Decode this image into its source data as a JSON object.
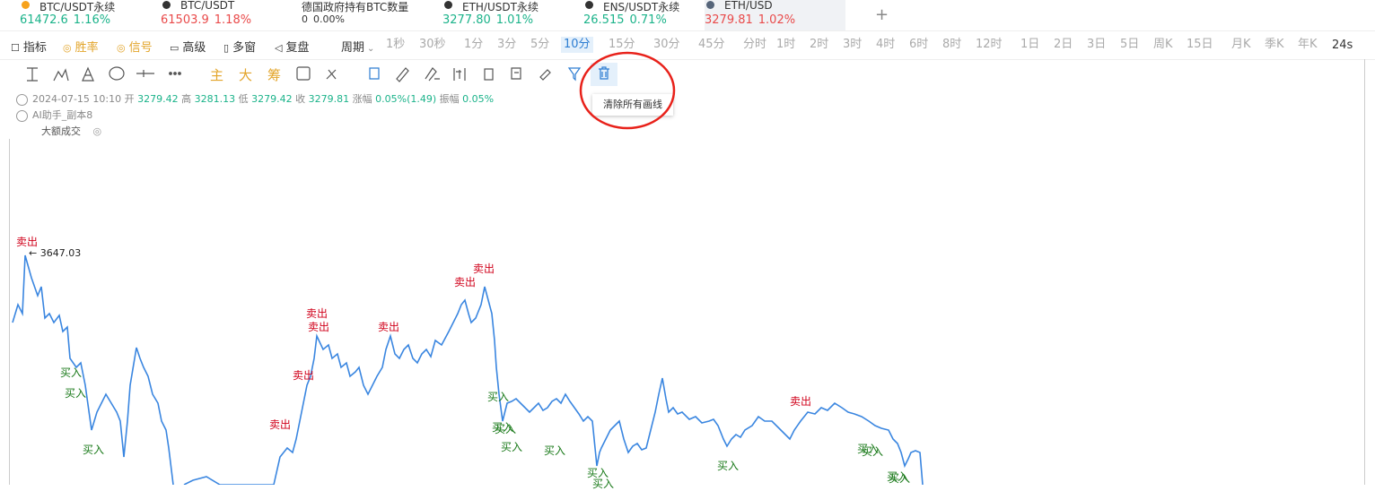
{
  "tabs": [
    {
      "symbol": "BTC/USDT永续",
      "price": "61472.6",
      "change": "1.16%",
      "trend": "up"
    },
    {
      "symbol": "BTC/USDT",
      "price": "61503.9",
      "change": "1.18%",
      "trend": "down"
    },
    {
      "symbol": "德国政府持有BTC数量",
      "price": "0",
      "change": "0.00%",
      "trend": "flat"
    },
    {
      "symbol": "ETH/USDT永续",
      "price": "3277.80",
      "change": "1.01%",
      "trend": "up"
    },
    {
      "symbol": "ENS/USDT永续",
      "price": "26.515",
      "change": "0.71%",
      "trend": "up"
    },
    {
      "symbol": "ETH/USD",
      "price": "3279.81",
      "change": "1.02%",
      "trend": "down"
    }
  ],
  "active_tab_index": 5,
  "toolbar": {
    "items": [
      "指标",
      "胜率",
      "信号",
      "高级",
      "多窗",
      "复盘",
      "周期"
    ],
    "intervals": [
      "1秒",
      "30秒",
      "1分",
      "3分",
      "5分",
      "10分",
      "15分",
      "30分",
      "45分",
      "分时",
      "1时",
      "2时",
      "3时",
      "4时",
      "6时",
      "8时",
      "12时",
      "1日",
      "2日",
      "3日",
      "5日",
      "周K",
      "15日",
      "月K",
      "季K",
      "年K"
    ],
    "active_interval_index": 5,
    "countdown": "24s"
  },
  "drawing_tools": {
    "labels": [
      "主",
      "大",
      "筹"
    ],
    "tooltip": "清除所有画线"
  },
  "ohlc": {
    "time": "2024-07-15 10:10",
    "open_label": "开",
    "open": "3279.42",
    "high_label": "高",
    "high": "3281.13",
    "low_label": "低",
    "low": "3279.42",
    "close_label": "收",
    "close": "3279.81",
    "change_label": "涨幅",
    "change": "0.05%(1.49)",
    "amplitude_label": "振幅",
    "amplitude": "0.05%"
  },
  "indicators": [
    "AI助手_副本8",
    "大额成交"
  ],
  "chart": {
    "high_marker": "← 3647.03",
    "sell_signals": [
      "卖出",
      "卖出",
      "卖出",
      "卖出",
      "卖出",
      "卖出",
      "卖出",
      "卖出",
      "卖出"
    ],
    "buy_signals": [
      "买入",
      "买入",
      "买入",
      "买入",
      "买入",
      "买入",
      "买入",
      "买入",
      "买入",
      "买入",
      "买入",
      "买入",
      "买入",
      "买入",
      "买入"
    ]
  }
}
